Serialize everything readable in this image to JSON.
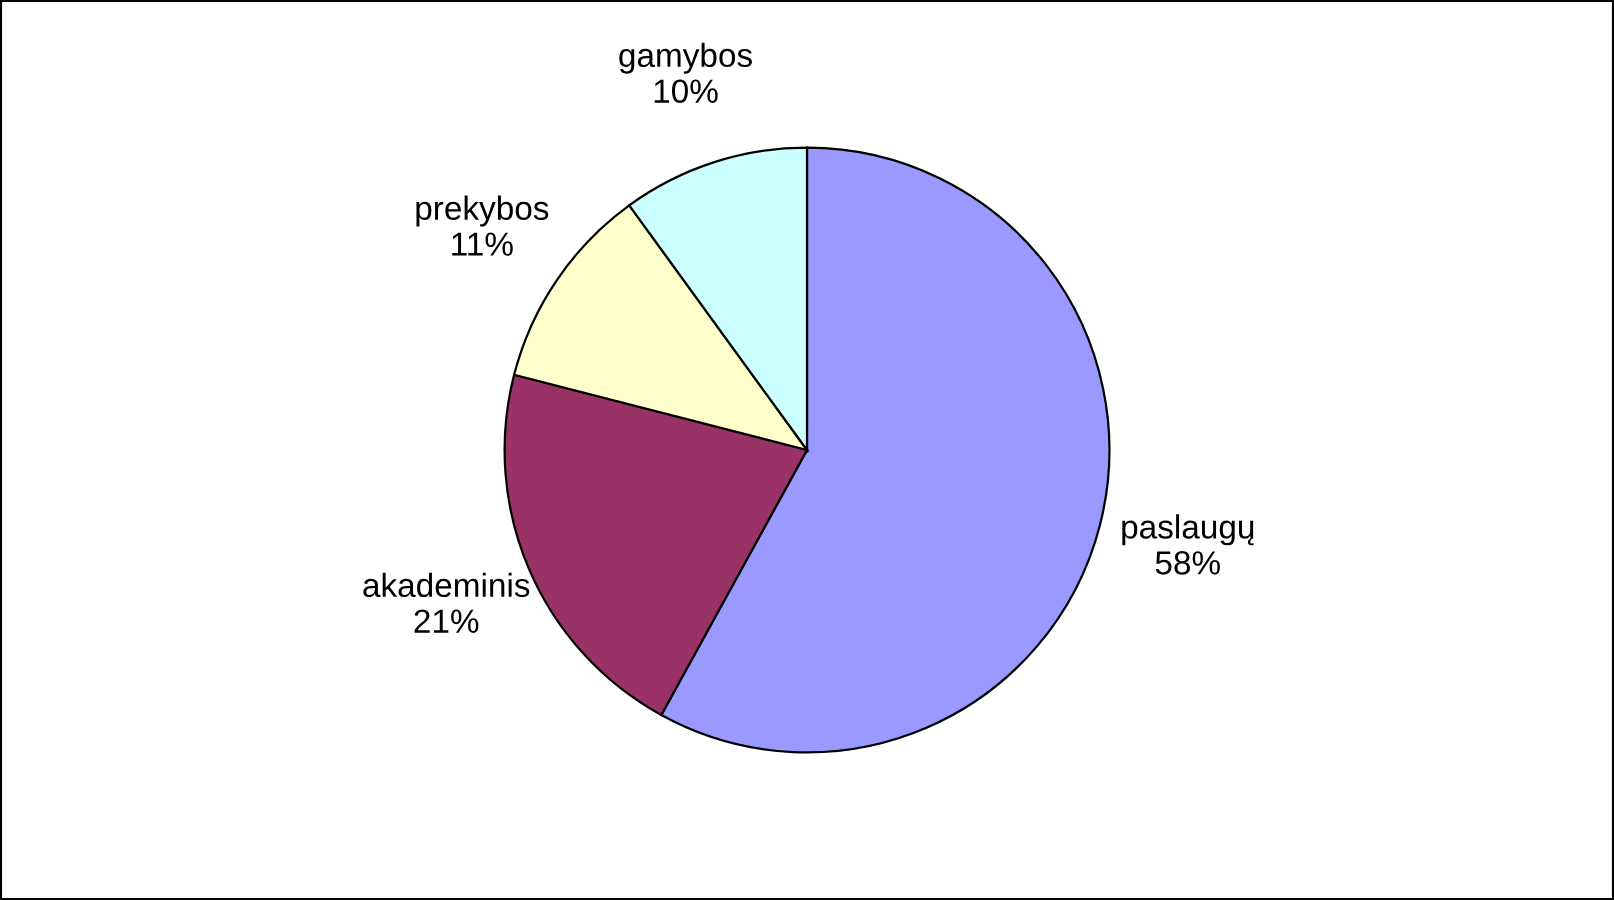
{
  "chart_data": {
    "type": "pie",
    "categories": [
      "paslaugų",
      "akademinis",
      "prekybos",
      "gamybos"
    ],
    "values": [
      58,
      21,
      11,
      10
    ],
    "value_labels": [
      "58%",
      "21%",
      "11%",
      "10%"
    ],
    "colors": [
      "#9999ff",
      "#993366",
      "#ffffcc",
      "#ccffff"
    ],
    "legend": false
  }
}
